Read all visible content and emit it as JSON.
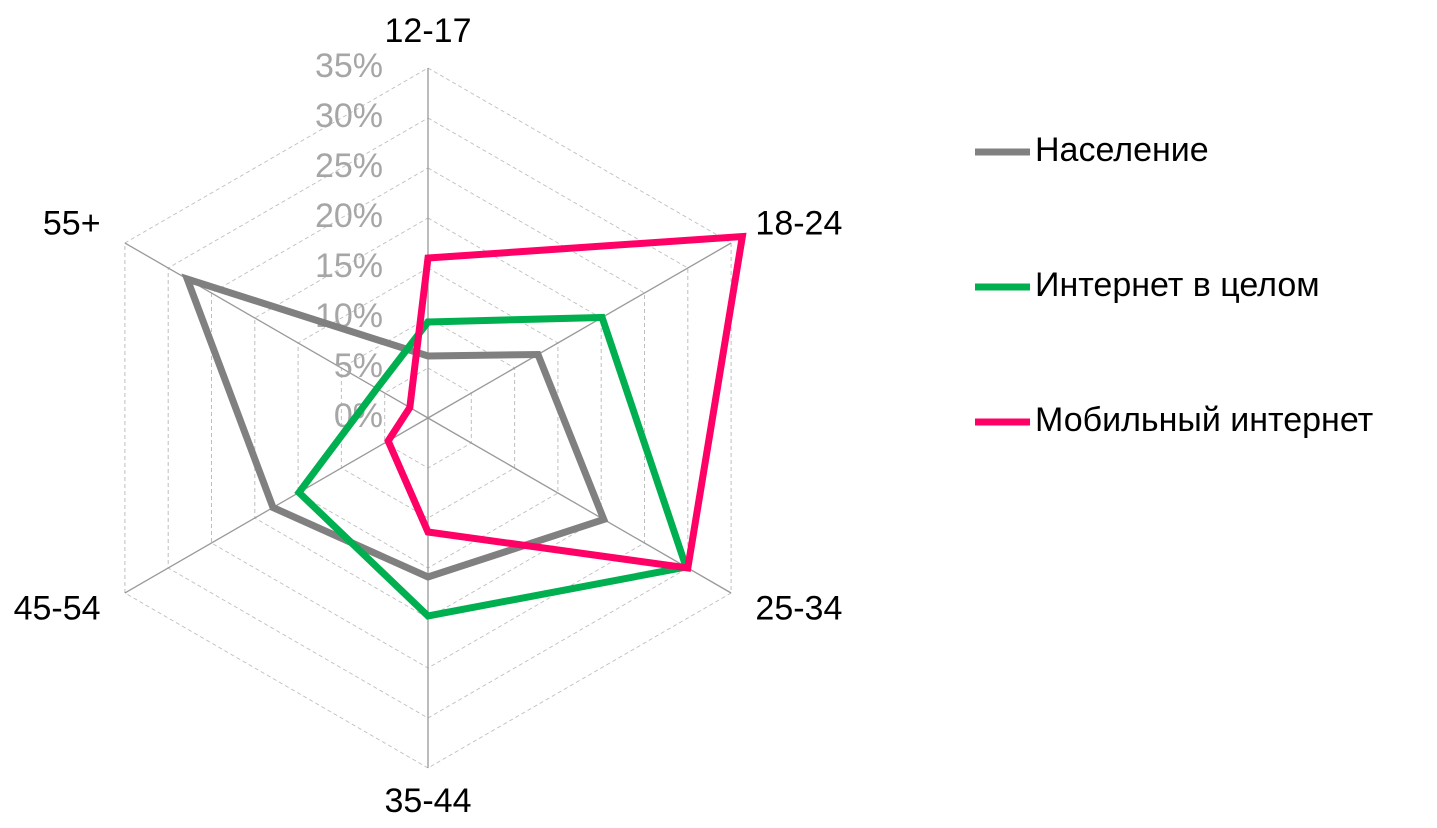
{
  "chart_data": {
    "type": "radar",
    "categories": [
      "12-17",
      "18-24",
      "25-34",
      "35-44",
      "45-54",
      "55+"
    ],
    "series": [
      {
        "name": "Население",
        "color": "#808080",
        "values": [
          6.2,
          12.7,
          20.3,
          15.9,
          17.9,
          27.8
        ]
      },
      {
        "name": "Интернет в целом",
        "color": "#00b050",
        "values": [
          9.6,
          20.1,
          29.8,
          19.8,
          14.9,
          5.9
        ]
      },
      {
        "name": "Мобильный интернет",
        "color": "#ff0066",
        "values": [
          16,
          36.3,
          30,
          11.4,
          4.6,
          2.1
        ]
      }
    ],
    "ylim": [
      0,
      35
    ],
    "yticks": [
      {
        "value": 0,
        "label": "0%"
      },
      {
        "value": 5,
        "label": "5%"
      },
      {
        "value": 10,
        "label": "10%"
      },
      {
        "value": 15,
        "label": "15%"
      },
      {
        "value": 20,
        "label": "20%"
      },
      {
        "value": 25,
        "label": "25%"
      },
      {
        "value": 30,
        "label": "30%"
      },
      {
        "value": 35,
        "label": "35%"
      }
    ],
    "grid": true,
    "legend": "right"
  }
}
